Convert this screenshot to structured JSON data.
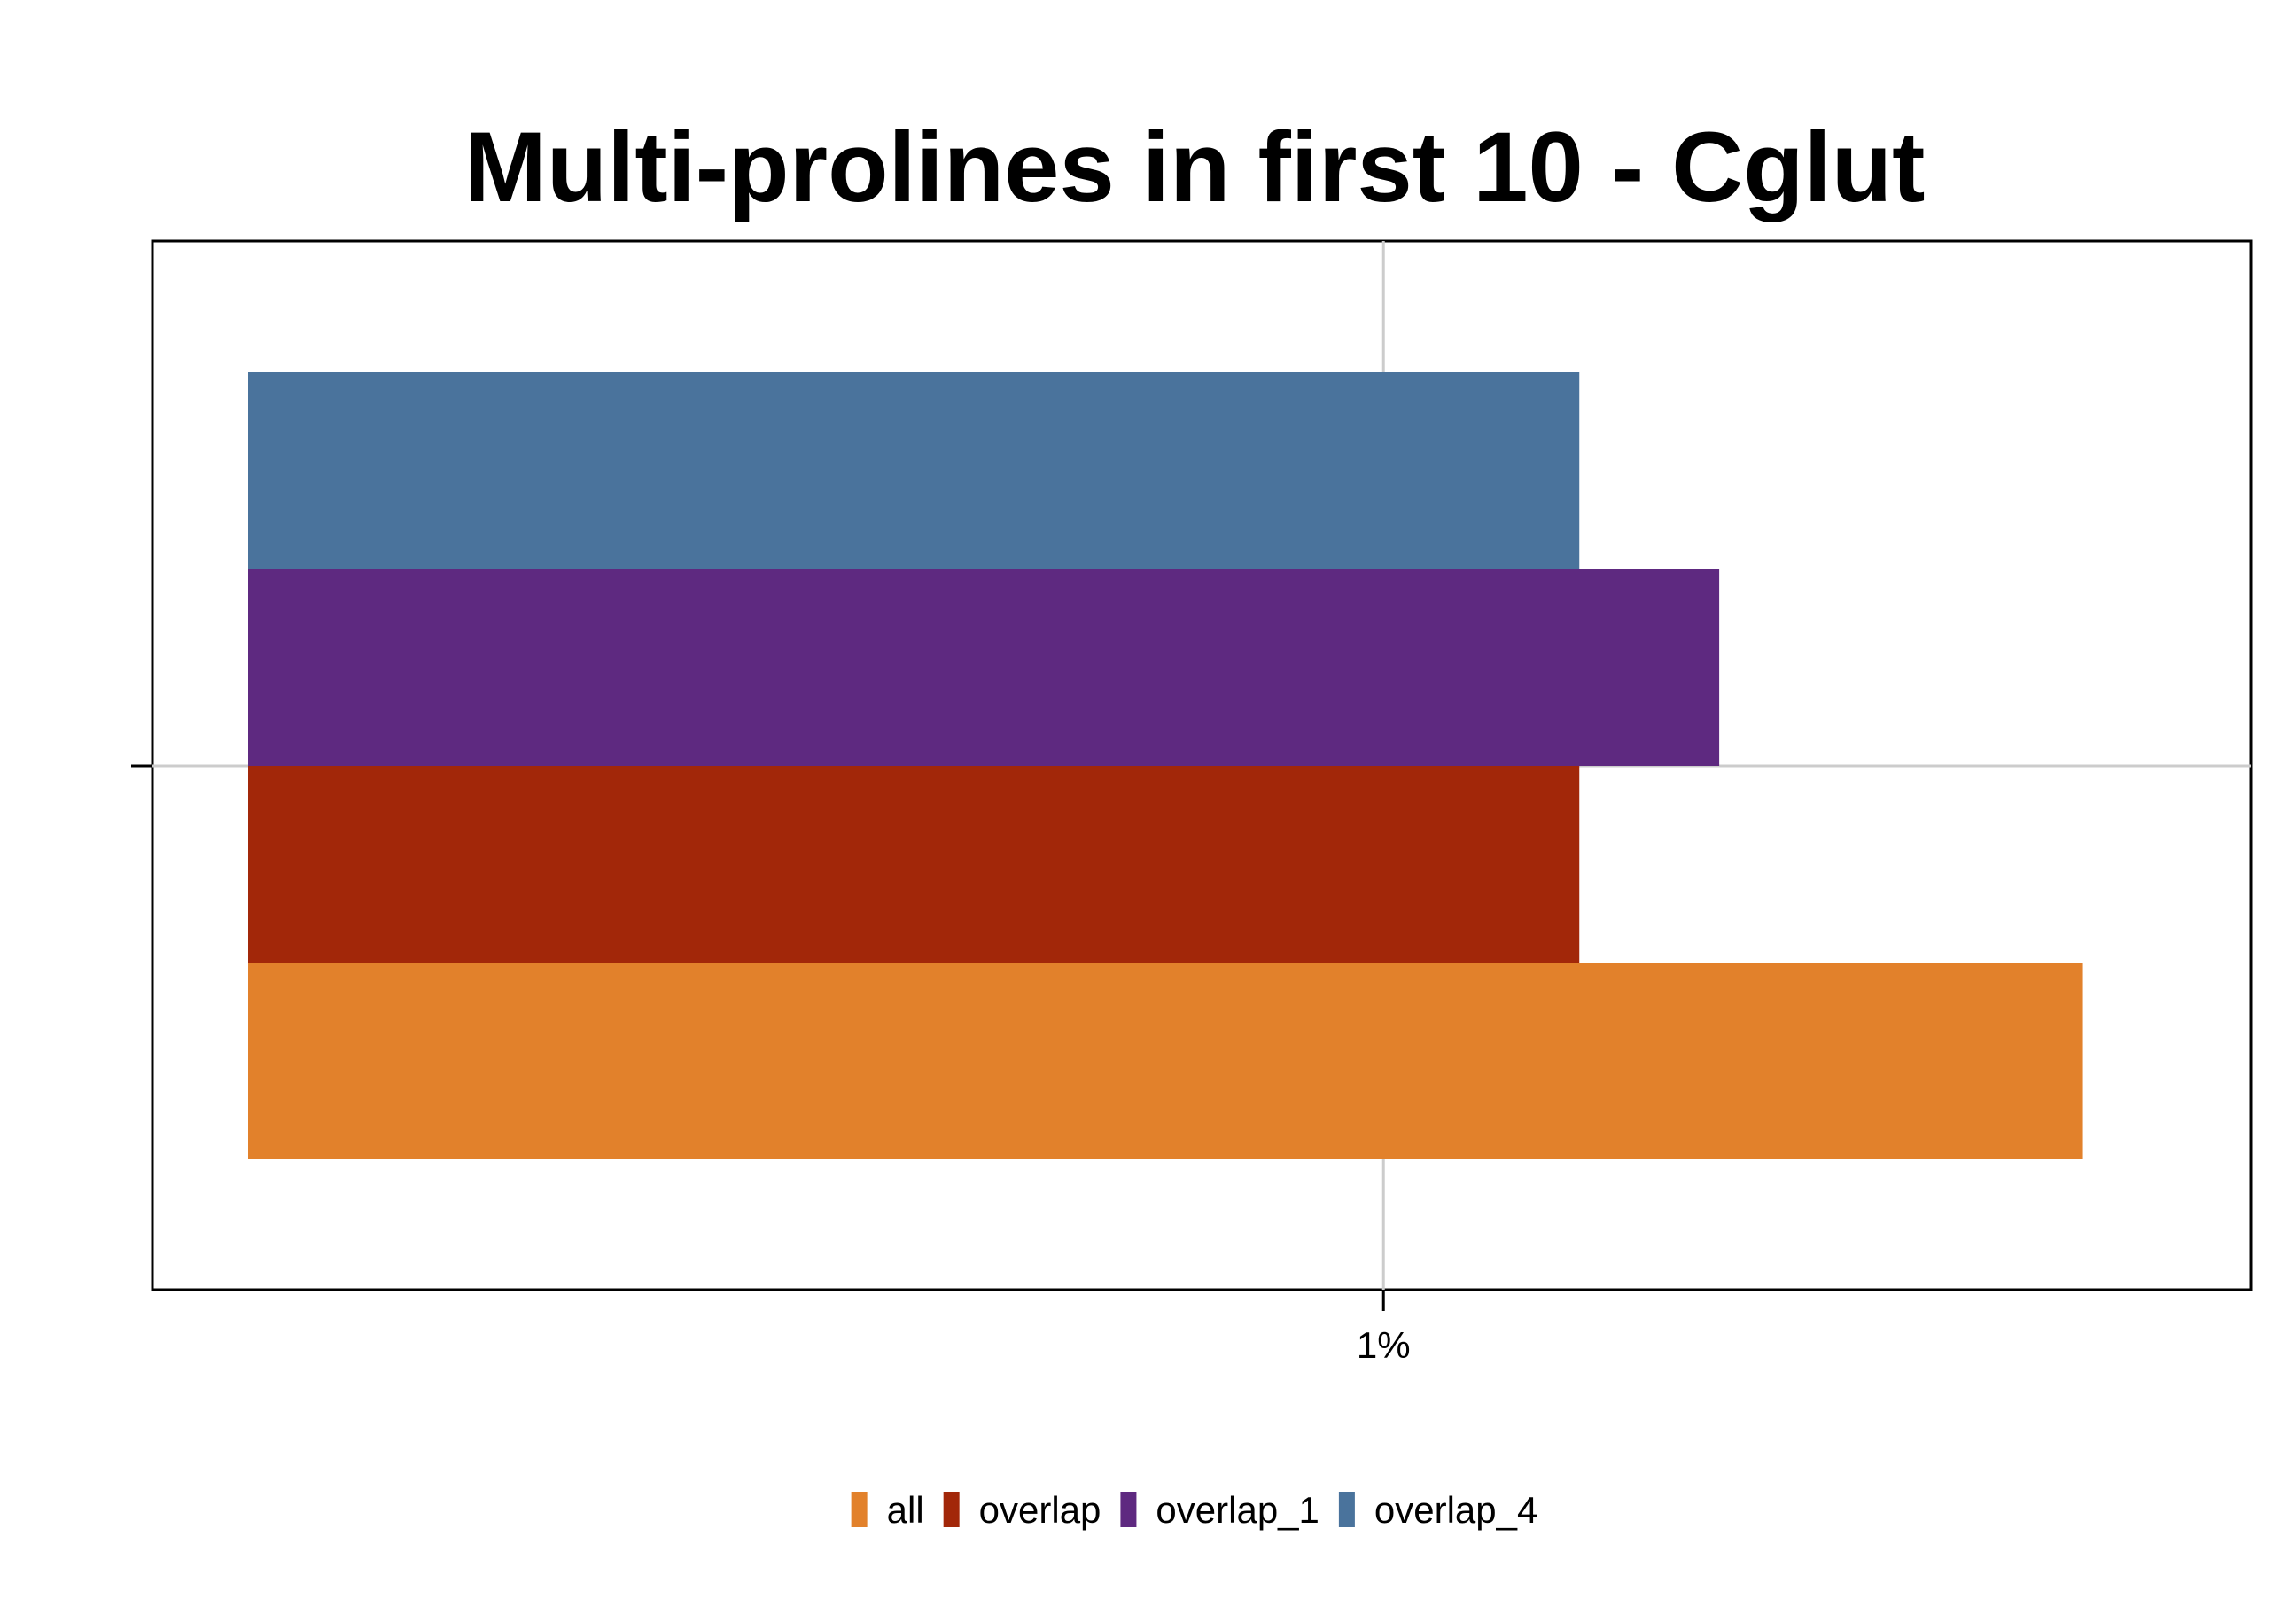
{
  "chart_data": {
    "type": "bar",
    "orientation": "horizontal",
    "title": "Multi-prolines in first 10 - Cglut",
    "xlabel": "",
    "ylabel": "",
    "x_ticks": [
      {
        "value": 1,
        "label": "1%"
      }
    ],
    "xlim": [
      0.56,
      1.31
    ],
    "grid": true,
    "legend_position": "bottom",
    "series": [
      {
        "name": "all",
        "color": "#E2812B",
        "value": 1.25
      },
      {
        "name": "overlap",
        "color": "#A22709",
        "value": 1.07
      },
      {
        "name": "overlap_1",
        "color": "#5E2980",
        "value": 1.12
      },
      {
        "name": "overlap_4",
        "color": "#4A739C",
        "value": 1.07
      }
    ]
  }
}
